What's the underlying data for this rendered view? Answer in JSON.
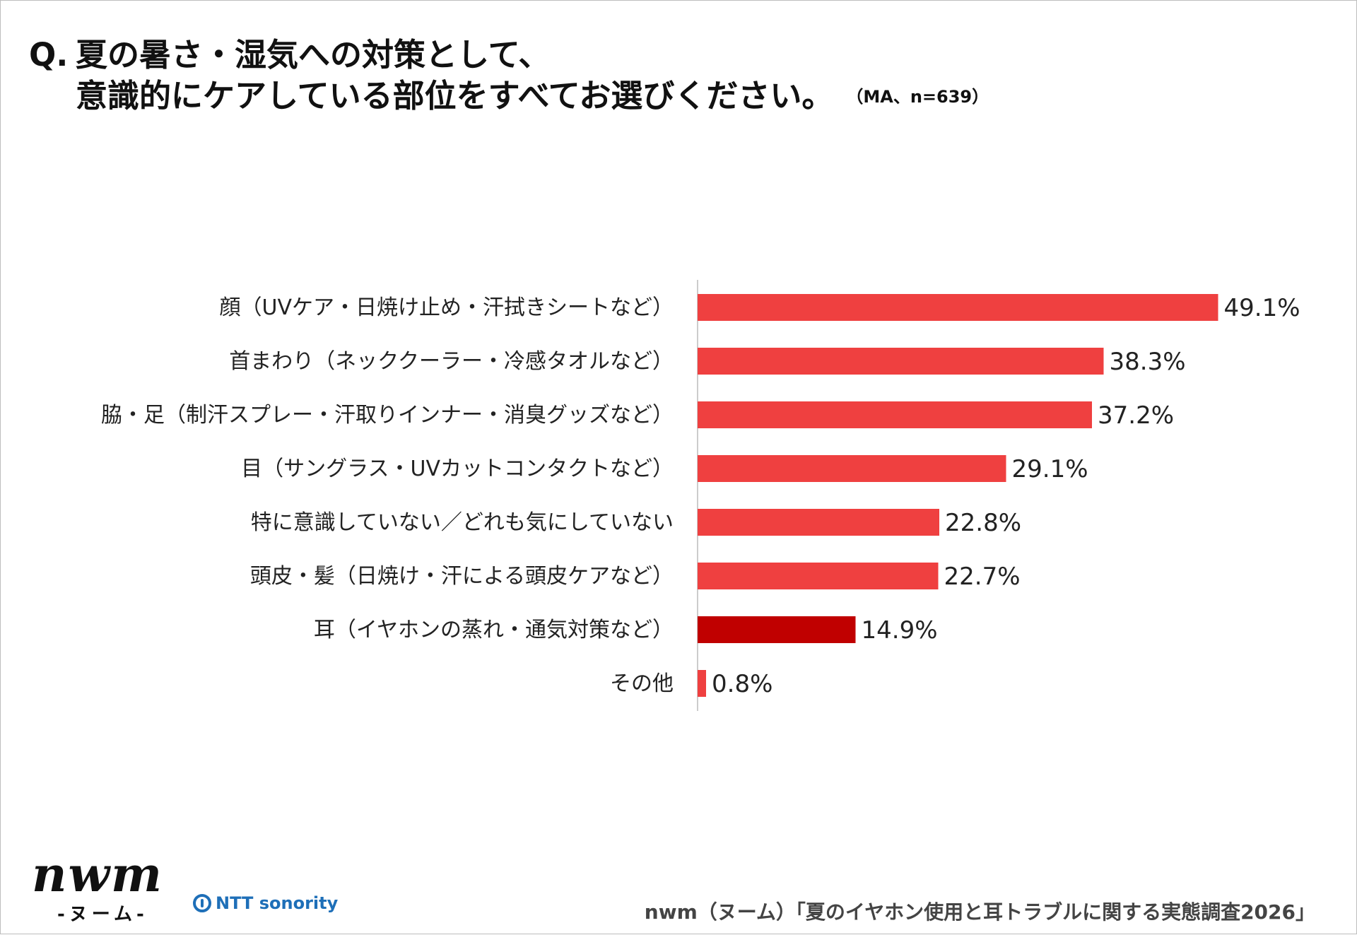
{
  "title": {
    "prefix": "Q.",
    "line1": "夏の暑さ・湿気への対策として、",
    "line2": "意識的にケアしている部位をすべてお選びください。",
    "note": "（MA、n=639）"
  },
  "colors": {
    "bar": "#ef4040",
    "highlight": "#c00000",
    "axis": "#cccccc"
  },
  "chart_data": {
    "type": "bar",
    "orientation": "horizontal",
    "categories": [
      "顔（UVケア・日焼け止め・汗拭きシートなど）",
      "首まわり（ネッククーラー・冷感タオルなど）",
      "脇・足（制汗スプレー・汗取りインナー・消臭グッズなど）",
      "目（サングラス・UVカットコンタクトなど）",
      "特に意識していない／どれも気にしていない",
      "頭皮・髪（日焼け・汗による頭皮ケアなど）",
      "耳（イヤホンの蒸れ・通気対策など）",
      "その他"
    ],
    "values": [
      49.1,
      38.3,
      37.2,
      29.1,
      22.8,
      22.7,
      14.9,
      0.8
    ],
    "value_labels": [
      "49.1%",
      "38.3%",
      "37.2%",
      "29.1%",
      "22.8%",
      "22.7%",
      "14.9%",
      "0.8%"
    ],
    "highlight_index": 6,
    "unit": "%"
  },
  "footer": {
    "logo": "nwm",
    "logo_sub": "-ヌーム-",
    "partner": "NTT sonority",
    "source": "nwm（ヌーム）「夏のイヤホン使用と耳トラブルに関する実態調査2026」"
  }
}
